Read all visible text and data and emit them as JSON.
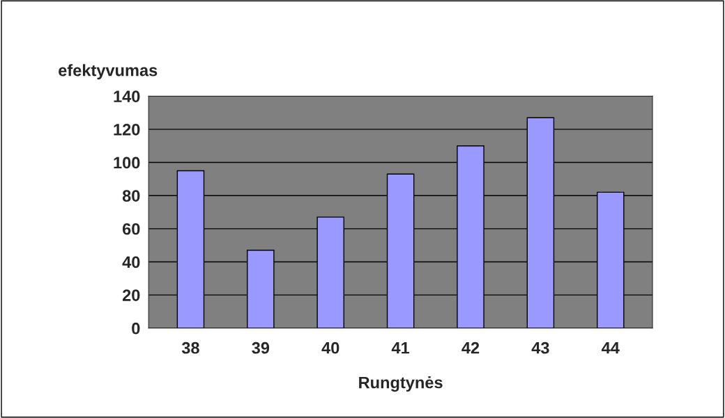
{
  "chart_data": {
    "type": "bar",
    "xlabel": "Rungtynės",
    "ylabel": "efektyvumas",
    "categories": [
      "38",
      "39",
      "40",
      "41",
      "42",
      "43",
      "44"
    ],
    "values": [
      95,
      47,
      67,
      93,
      110,
      127,
      82
    ],
    "color": "#9999ff",
    "ylim": [
      0,
      140
    ],
    "yticks": [
      0,
      20,
      40,
      60,
      80,
      100,
      120,
      140
    ],
    "grid": "y"
  }
}
